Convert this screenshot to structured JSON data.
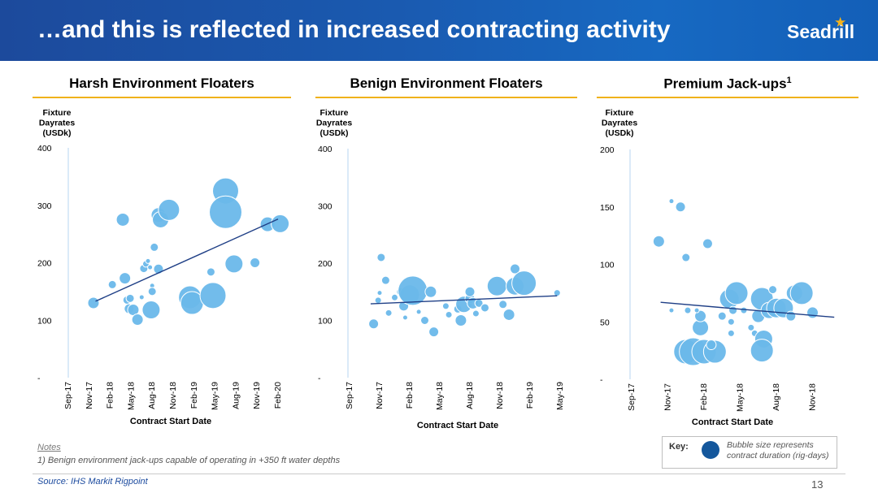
{
  "header": {
    "title": "…and this is reflected in increased contracting activity",
    "logo": "Seadrill"
  },
  "colors": {
    "header_blue": "#1a5ab0",
    "bubble": "#6ab8ea",
    "trend": "#1f3f86",
    "rule": "#f0b21a",
    "key_bubble": "#14579c"
  },
  "notes": {
    "heading": "Notes",
    "line1": "1)   Benign environment jack-ups capable of operating in +350 ft water depths"
  },
  "source": "Source: IHS Markit Rigpoint",
  "page_number": "13",
  "key": {
    "label": "Key:",
    "text": "Bubble size represents contract duration (rig-days)"
  },
  "chart_data": [
    {
      "type": "scatter",
      "title": "Harsh Environment Floaters",
      "ylabel": "Fixture Dayrates (USDk)",
      "xlabel": "Contract Start Date",
      "yticks": [
        "400",
        "300",
        "200",
        "100",
        "-"
      ],
      "ylim": [
        0,
        400
      ],
      "xticks": [
        "Sep-17",
        "Nov-17",
        "Feb-18",
        "May-18",
        "Aug-18",
        "Nov-18",
        "Feb-19",
        "May-19",
        "Aug-19",
        "Nov-19",
        "Feb-20"
      ],
      "trend": {
        "from": [
          1.3,
          133
        ],
        "to": [
          10,
          276
        ]
      },
      "points": [
        {
          "x": 1.2,
          "y": 130,
          "s": 7
        },
        {
          "x": 2.1,
          "y": 162,
          "s": 5
        },
        {
          "x": 2.6,
          "y": 275,
          "s": 8
        },
        {
          "x": 2.7,
          "y": 173,
          "s": 7
        },
        {
          "x": 2.8,
          "y": 135,
          "s": 5
        },
        {
          "x": 2.95,
          "y": 138,
          "s": 5
        },
        {
          "x": 2.9,
          "y": 120,
          "s": 6
        },
        {
          "x": 3.1,
          "y": 118,
          "s": 7
        },
        {
          "x": 3.3,
          "y": 101,
          "s": 7
        },
        {
          "x": 3.5,
          "y": 140,
          "s": 3
        },
        {
          "x": 3.6,
          "y": 190,
          "s": 5
        },
        {
          "x": 3.7,
          "y": 198,
          "s": 4
        },
        {
          "x": 3.8,
          "y": 203,
          "s": 3
        },
        {
          "x": 3.9,
          "y": 192,
          "s": 3
        },
        {
          "x": 4.0,
          "y": 160,
          "s": 3
        },
        {
          "x": 4.0,
          "y": 150,
          "s": 5
        },
        {
          "x": 3.95,
          "y": 118,
          "s": 11
        },
        {
          "x": 4.1,
          "y": 227,
          "s": 5
        },
        {
          "x": 4.3,
          "y": 189,
          "s": 6
        },
        {
          "x": 4.3,
          "y": 283,
          "s": 9
        },
        {
          "x": 4.4,
          "y": 275,
          "s": 10
        },
        {
          "x": 4.8,
          "y": 292,
          "s": 13
        },
        {
          "x": 5.8,
          "y": 140,
          "s": 14
        },
        {
          "x": 5.9,
          "y": 130,
          "s": 14
        },
        {
          "x": 6.9,
          "y": 143,
          "s": 16
        },
        {
          "x": 6.8,
          "y": 184,
          "s": 5
        },
        {
          "x": 7.5,
          "y": 325,
          "s": 16
        },
        {
          "x": 7.5,
          "y": 288,
          "s": 20
        },
        {
          "x": 7.9,
          "y": 198,
          "s": 11
        },
        {
          "x": 8.9,
          "y": 200,
          "s": 6
        },
        {
          "x": 9.5,
          "y": 267,
          "s": 9
        },
        {
          "x": 10.1,
          "y": 268,
          "s": 11
        }
      ]
    },
    {
      "type": "scatter",
      "title": "Benign Environment Floaters",
      "ylabel": "Fixture Dayrates (USDk)",
      "xlabel": "Contract Start Date",
      "yticks": [
        "400",
        "300",
        "200",
        "100",
        "-"
      ],
      "ylim": [
        0,
        400
      ],
      "xticks": [
        "Sep-17",
        "Nov-17",
        "Feb-18",
        "May-18",
        "Aug-18",
        "Nov-18",
        "Feb-19",
        "May-19"
      ],
      "trend": {
        "from": [
          0.7,
          129
        ],
        "to": [
          6.9,
          143
        ]
      },
      "points": [
        {
          "x": 0.8,
          "y": 94,
          "s": 6
        },
        {
          "x": 0.95,
          "y": 135,
          "s": 4
        },
        {
          "x": 1.0,
          "y": 148,
          "s": 3
        },
        {
          "x": 1.05,
          "y": 210,
          "s": 5
        },
        {
          "x": 1.2,
          "y": 170,
          "s": 5
        },
        {
          "x": 1.3,
          "y": 113,
          "s": 4
        },
        {
          "x": 1.5,
          "y": 140,
          "s": 4
        },
        {
          "x": 1.7,
          "y": 150,
          "s": 5
        },
        {
          "x": 1.8,
          "y": 125,
          "s": 6
        },
        {
          "x": 1.85,
          "y": 105,
          "s": 3
        },
        {
          "x": 2.0,
          "y": 145,
          "s": 12
        },
        {
          "x": 2.1,
          "y": 152,
          "s": 18
        },
        {
          "x": 2.3,
          "y": 115,
          "s": 3
        },
        {
          "x": 2.5,
          "y": 100,
          "s": 5
        },
        {
          "x": 2.7,
          "y": 150,
          "s": 7
        },
        {
          "x": 2.8,
          "y": 80,
          "s": 6
        },
        {
          "x": 3.2,
          "y": 125,
          "s": 4
        },
        {
          "x": 3.3,
          "y": 110,
          "s": 4
        },
        {
          "x": 3.6,
          "y": 120,
          "s": 5
        },
        {
          "x": 3.7,
          "y": 100,
          "s": 7
        },
        {
          "x": 3.8,
          "y": 128,
          "s": 10
        },
        {
          "x": 4.0,
          "y": 138,
          "s": 6
        },
        {
          "x": 4.0,
          "y": 150,
          "s": 6
        },
        {
          "x": 4.1,
          "y": 130,
          "s": 7
        },
        {
          "x": 4.2,
          "y": 112,
          "s": 4
        },
        {
          "x": 4.3,
          "y": 130,
          "s": 5
        },
        {
          "x": 4.5,
          "y": 122,
          "s": 5
        },
        {
          "x": 4.9,
          "y": 160,
          "s": 12
        },
        {
          "x": 5.1,
          "y": 128,
          "s": 5
        },
        {
          "x": 5.3,
          "y": 110,
          "s": 7
        },
        {
          "x": 5.5,
          "y": 190,
          "s": 6
        },
        {
          "x": 5.5,
          "y": 160,
          "s": 11
        },
        {
          "x": 5.8,
          "y": 165,
          "s": 15
        },
        {
          "x": 6.9,
          "y": 148,
          "s": 4
        }
      ]
    },
    {
      "type": "scatter",
      "title": "Premium Jack-ups",
      "title_sup": "1",
      "ylabel": "Fixture Dayrates (USDk)",
      "xlabel": "Contract Start Date",
      "yticks": [
        "200",
        "150",
        "100",
        "50",
        "-"
      ],
      "ylim": [
        0,
        200
      ],
      "xticks": [
        "Sep-17",
        "Nov-17",
        "Feb-18",
        "May-18",
        "Aug-18",
        "Nov-18"
      ],
      "trend": {
        "from": [
          0.8,
          67
        ],
        "to": [
          5.6,
          54
        ]
      },
      "points": [
        {
          "x": 0.75,
          "y": 120,
          "s": 7
        },
        {
          "x": 1.1,
          "y": 155,
          "s": 3
        },
        {
          "x": 1.35,
          "y": 150,
          "s": 6
        },
        {
          "x": 1.5,
          "y": 106,
          "s": 5
        },
        {
          "x": 2.1,
          "y": 118,
          "s": 6
        },
        {
          "x": 1.5,
          "y": 24,
          "s": 15
        },
        {
          "x": 1.7,
          "y": 24,
          "s": 17
        },
        {
          "x": 2.0,
          "y": 24,
          "s": 15
        },
        {
          "x": 2.3,
          "y": 24,
          "s": 14
        },
        {
          "x": 1.9,
          "y": 45,
          "s": 10
        },
        {
          "x": 1.9,
          "y": 55,
          "s": 7
        },
        {
          "x": 2.2,
          "y": 30,
          "s": 6
        },
        {
          "x": 1.1,
          "y": 60,
          "s": 3
        },
        {
          "x": 1.55,
          "y": 60,
          "s": 4
        },
        {
          "x": 1.8,
          "y": 60,
          "s": 3
        },
        {
          "x": 2.5,
          "y": 55,
          "s": 5
        },
        {
          "x": 2.7,
          "y": 70,
          "s": 12
        },
        {
          "x": 2.9,
          "y": 75,
          "s": 14
        },
        {
          "x": 2.8,
          "y": 60,
          "s": 5
        },
        {
          "x": 2.75,
          "y": 50,
          "s": 4
        },
        {
          "x": 2.75,
          "y": 40,
          "s": 4
        },
        {
          "x": 3.1,
          "y": 60,
          "s": 4
        },
        {
          "x": 3.3,
          "y": 45,
          "s": 4
        },
        {
          "x": 3.4,
          "y": 40,
          "s": 4
        },
        {
          "x": 3.5,
          "y": 55,
          "s": 8
        },
        {
          "x": 3.65,
          "y": 35,
          "s": 11
        },
        {
          "x": 3.6,
          "y": 25,
          "s": 14
        },
        {
          "x": 3.6,
          "y": 70,
          "s": 14
        },
        {
          "x": 3.8,
          "y": 60,
          "s": 10
        },
        {
          "x": 3.9,
          "y": 78,
          "s": 5
        },
        {
          "x": 4.0,
          "y": 62,
          "s": 12
        },
        {
          "x": 4.2,
          "y": 62,
          "s": 12
        },
        {
          "x": 4.5,
          "y": 75,
          "s": 10
        },
        {
          "x": 4.4,
          "y": 55,
          "s": 6
        },
        {
          "x": 4.7,
          "y": 75,
          "s": 14
        },
        {
          "x": 5.0,
          "y": 58,
          "s": 7
        }
      ]
    }
  ]
}
